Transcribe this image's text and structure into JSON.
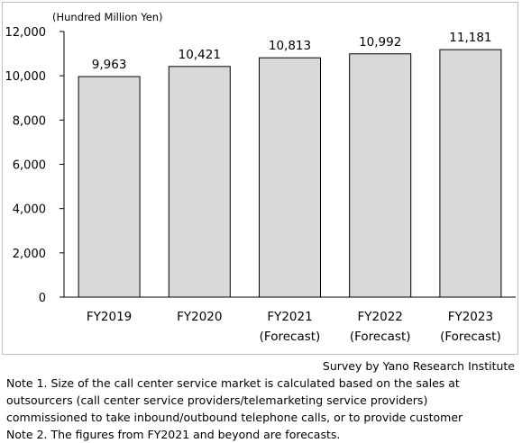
{
  "chart_data": {
    "type": "bar",
    "ylabel": "(Hundred Million Yen)",
    "categories": [
      [
        "FY2019"
      ],
      [
        "FY2020"
      ],
      [
        "FY2021",
        "(Forecast)"
      ],
      [
        "FY2022",
        "(Forecast)"
      ],
      [
        "FY2023",
        "(Forecast)"
      ]
    ],
    "values": [
      9963,
      10421,
      10813,
      10992,
      11181
    ],
    "value_labels": [
      "9,963",
      "10,421",
      "10,813",
      "10,992",
      "11,181"
    ],
    "ylim": [
      0,
      12000
    ],
    "yticks": [
      0,
      2000,
      4000,
      6000,
      8000,
      10000,
      12000
    ],
    "ytick_labels": [
      "0",
      "2,000",
      "4,000",
      "6,000",
      "8,000",
      "10,000",
      "12,000"
    ],
    "grid": false,
    "bar_color": "#d9d9d9",
    "bar_stroke": "#000000"
  },
  "source": "Survey by Yano Research Institute",
  "notes": [
    "Note 1.  Size of the call center service market is calculated based on the sales at",
    "outsourcers (call center service providers/telemarketing service providers)",
    "commissioned to take inbound/outbound telephone calls, or to provide customer",
    "Note 2.  The figures from FY2021 and beyond are forecasts."
  ]
}
